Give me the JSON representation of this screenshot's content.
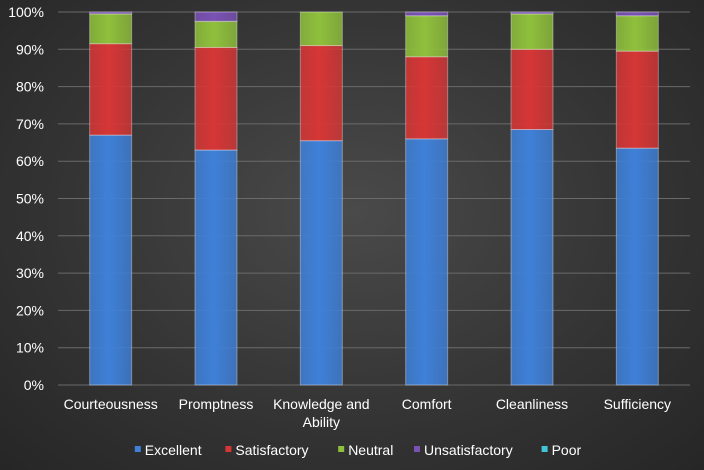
{
  "chart_data": {
    "type": "bar",
    "stacked": "percent",
    "categories": [
      [
        "Courteousness"
      ],
      [
        "Promptness"
      ],
      [
        "Knowledge and",
        "Ability"
      ],
      [
        "Comfort"
      ],
      [
        "Cleanliness"
      ],
      [
        "Sufficiency"
      ]
    ],
    "y_ticks": [
      "0%",
      "10%",
      "20%",
      "30%",
      "40%",
      "50%",
      "60%",
      "70%",
      "80%",
      "90%",
      "100%"
    ],
    "ylim": [
      0,
      100
    ],
    "grid": true,
    "legend_position": "bottom",
    "series": [
      {
        "name": "Excellent",
        "color": "#3f80d8",
        "values": [
          67,
          63,
          65.5,
          66,
          68.5,
          63.5
        ]
      },
      {
        "name": "Satisfactory",
        "color": "#d63636",
        "values": [
          24.5,
          27.5,
          25.5,
          22,
          21.5,
          26
        ]
      },
      {
        "name": "Neutral",
        "color": "#8fc03c",
        "values": [
          8,
          7,
          9,
          11,
          9.5,
          9.5
        ]
      },
      {
        "name": "Unsatisfactory",
        "color": "#7a52b4",
        "values": [
          0.5,
          2.5,
          0,
          1,
          0.5,
          1
        ]
      },
      {
        "name": "Poor",
        "color": "#3ec6d8",
        "values": [
          0,
          0,
          0,
          0,
          0,
          0
        ]
      }
    ]
  }
}
